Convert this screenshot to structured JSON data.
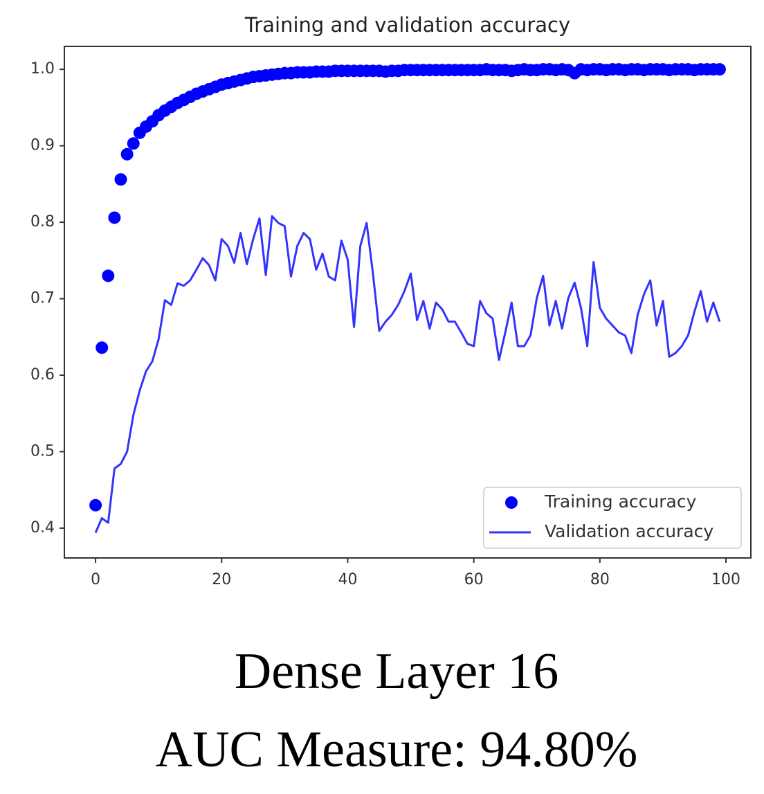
{
  "chart_data": {
    "type": "line",
    "title": "Training and validation accuracy",
    "caption": [
      "Dense Layer 16",
      "AUC Measure: 94.80%"
    ],
    "x": [
      0,
      1,
      2,
      3,
      4,
      5,
      6,
      7,
      8,
      9,
      10,
      11,
      12,
      13,
      14,
      15,
      16,
      17,
      18,
      19,
      20,
      21,
      22,
      23,
      24,
      25,
      26,
      27,
      28,
      29,
      30,
      31,
      32,
      33,
      34,
      35,
      36,
      37,
      38,
      39,
      40,
      41,
      42,
      43,
      44,
      45,
      46,
      47,
      48,
      49,
      50,
      51,
      52,
      53,
      54,
      55,
      56,
      57,
      58,
      59,
      60,
      61,
      62,
      63,
      64,
      65,
      66,
      67,
      68,
      69,
      70,
      71,
      72,
      73,
      74,
      75,
      76,
      77,
      78,
      79,
      80,
      81,
      82,
      83,
      84,
      85,
      86,
      87,
      88,
      89,
      90,
      91,
      92,
      93,
      94,
      95,
      96,
      97,
      98,
      99
    ],
    "series": [
      {
        "name": "Training accuracy",
        "mode": "markers",
        "color": "#0000ff",
        "values": [
          0.43,
          0.636,
          0.73,
          0.806,
          0.856,
          0.889,
          0.903,
          0.917,
          0.925,
          0.932,
          0.94,
          0.946,
          0.951,
          0.956,
          0.96,
          0.964,
          0.968,
          0.971,
          0.974,
          0.977,
          0.98,
          0.982,
          0.984,
          0.986,
          0.988,
          0.99,
          0.991,
          0.992,
          0.993,
          0.994,
          0.995,
          0.995,
          0.996,
          0.996,
          0.996,
          0.997,
          0.997,
          0.997,
          0.998,
          0.998,
          0.998,
          0.998,
          0.998,
          0.998,
          0.998,
          0.998,
          0.997,
          0.998,
          0.998,
          0.999,
          0.999,
          0.999,
          0.999,
          0.999,
          0.999,
          0.999,
          0.999,
          0.999,
          0.999,
          0.999,
          0.999,
          0.999,
          1.0,
          0.999,
          0.999,
          0.999,
          0.998,
          0.999,
          1.0,
          0.999,
          0.999,
          1.0,
          1.0,
          0.999,
          1.0,
          0.999,
          0.995,
          1.0,
          0.999,
          1.0,
          1.0,
          0.999,
          1.0,
          1.0,
          0.999,
          1.0,
          1.0,
          0.999,
          1.0,
          1.0,
          1.0,
          0.999,
          1.0,
          1.0,
          1.0,
          0.999,
          1.0,
          1.0,
          1.0,
          1.0
        ]
      },
      {
        "name": "Validation accuracy",
        "mode": "line",
        "color": "#3333ff",
        "values": [
          0.394,
          0.413,
          0.407,
          0.478,
          0.484,
          0.5,
          0.548,
          0.58,
          0.605,
          0.618,
          0.647,
          0.698,
          0.692,
          0.72,
          0.717,
          0.724,
          0.738,
          0.753,
          0.744,
          0.724,
          0.778,
          0.769,
          0.747,
          0.786,
          0.745,
          0.778,
          0.805,
          0.731,
          0.808,
          0.799,
          0.795,
          0.729,
          0.769,
          0.786,
          0.778,
          0.738,
          0.759,
          0.729,
          0.724,
          0.776,
          0.751,
          0.663,
          0.769,
          0.799,
          0.733,
          0.658,
          0.67,
          0.679,
          0.692,
          0.71,
          0.733,
          0.672,
          0.697,
          0.661,
          0.695,
          0.686,
          0.67,
          0.67,
          0.656,
          0.641,
          0.638,
          0.697,
          0.681,
          0.674,
          0.62,
          0.656,
          0.695,
          0.638,
          0.638,
          0.652,
          0.701,
          0.73,
          0.665,
          0.697,
          0.661,
          0.701,
          0.721,
          0.688,
          0.638,
          0.748,
          0.688,
          0.674,
          0.665,
          0.656,
          0.652,
          0.629,
          0.679,
          0.706,
          0.724,
          0.665,
          0.697,
          0.624,
          0.629,
          0.638,
          0.652,
          0.683,
          0.71,
          0.67,
          0.695,
          0.67
        ]
      }
    ],
    "xlim": [
      -4.95,
      103.95
    ],
    "ylim": [
      0.361,
      1.03
    ],
    "xticks": [
      0,
      20,
      40,
      60,
      80,
      100
    ],
    "yticks": [
      0.4,
      0.5,
      0.6,
      0.7,
      0.8,
      0.9,
      {
        "value": 1,
        "label": "1.0"
      }
    ],
    "grid": false,
    "legend": "lower right"
  }
}
